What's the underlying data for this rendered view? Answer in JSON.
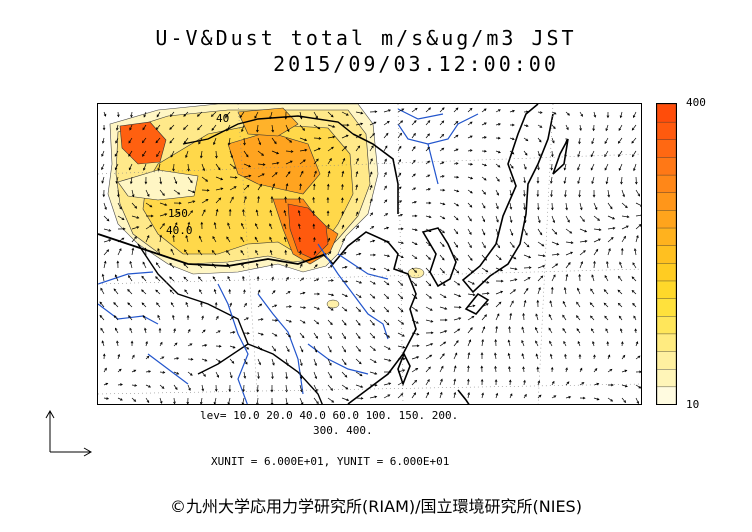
{
  "title": {
    "line1": "U-V&Dust total m/s&ug/m3 JST",
    "line2": "2015/09/03.12:00:00"
  },
  "map": {
    "contour_labels": [
      "150",
      "40.0",
      "40"
    ]
  },
  "colorbar": {
    "max_label": "400",
    "min_label": "10",
    "colors": [
      "#fffbe0",
      "#fff5b8",
      "#fff0a0",
      "#ffeb80",
      "#ffe65a",
      "#ffe13c",
      "#ffd82a",
      "#ffcc22",
      "#ffc020",
      "#ffb21e",
      "#ffa41c",
      "#ff961a",
      "#ff8718",
      "#ff7816",
      "#ff6812",
      "#ff5a0e",
      "#ff4d0a"
    ]
  },
  "levels": {
    "line1": "lev= 10.0 20.0 40.0 60.0 100. 150. 200.",
    "line2": "300. 400."
  },
  "units": "XUNIT = 6.000E+01, YUNIT = 6.000E+01",
  "copyright": "©九州大学応用力学研究所(RIAM)/国立環境研究所(NIES)"
}
